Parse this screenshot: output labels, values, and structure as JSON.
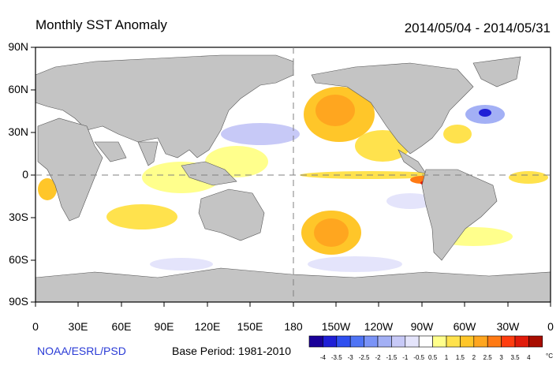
{
  "title": "Monthly SST Anomaly",
  "date_range": "2014/05/04 - 2014/05/31",
  "credit": "NOAA/ESRL/PSD",
  "base_period": "Base Period: 1981-2010",
  "y_ticks": [
    "90N",
    "60N",
    "30N",
    "0",
    "30S",
    "60S",
    "90S"
  ],
  "x_ticks": [
    "0",
    "30E",
    "60E",
    "90E",
    "120E",
    "150E",
    "180",
    "150W",
    "120W",
    "90W",
    "60W",
    "30W",
    "0"
  ],
  "colorbar": {
    "labels": [
      "-4",
      "-3.5",
      "-3",
      "-2.5",
      "-2",
      "-1.5",
      "-1",
      "-0.5",
      "0.5",
      "1",
      "1.5",
      "2",
      "2.5",
      "3",
      "3.5",
      "4"
    ],
    "unit": "°C",
    "colors": [
      "#1a0099",
      "#1f1fd6",
      "#2f4ff0",
      "#4f74f5",
      "#7a93f7",
      "#a3b0f5",
      "#c7c9f7",
      "#e4e4fb",
      "#ffffff",
      "#ffff8c",
      "#ffe24d",
      "#ffc629",
      "#ffa61f",
      "#ff7a14",
      "#ff3d0f",
      "#e01b0a",
      "#a80d00"
    ]
  },
  "colors": {
    "land": "#c4c4c4",
    "ocean": "#ffffff",
    "equator_line": "#808080"
  }
}
